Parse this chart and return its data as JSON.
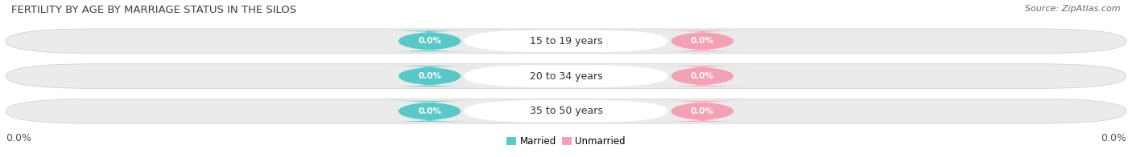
{
  "title": "FERTILITY BY AGE BY MARRIAGE STATUS IN THE SILOS",
  "source": "Source: ZipAtlas.com",
  "categories": [
    "15 to 19 years",
    "20 to 34 years",
    "35 to 50 years"
  ],
  "married_values": [
    0.0,
    0.0,
    0.0
  ],
  "unmarried_values": [
    0.0,
    0.0,
    0.0
  ],
  "married_color": "#5bc8c8",
  "unmarried_color": "#f4a0b5",
  "bar_bg_left": "#e8e8e8",
  "bar_bg_right": "#eeeeee",
  "xlim_left": "0.0%",
  "xlim_right": "0.0%",
  "legend_married": "Married",
  "legend_unmarried": "Unmarried",
  "title_fontsize": 9.5,
  "label_fontsize": 9,
  "badge_fontsize": 7.5,
  "tick_fontsize": 9,
  "source_fontsize": 8
}
